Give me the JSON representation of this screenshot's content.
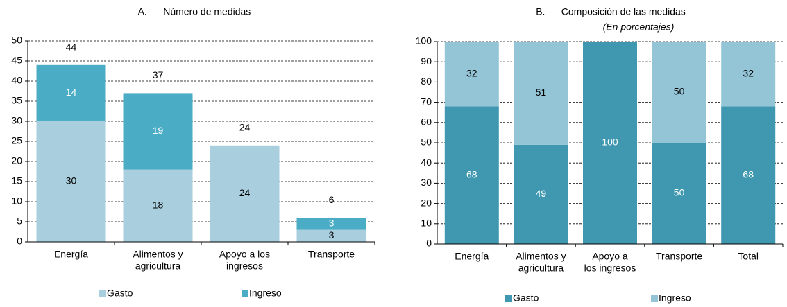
{
  "chart_data": [
    {
      "type": "stacked_bar",
      "title": "A.      Número de medidas",
      "categories": [
        [
          "Energía"
        ],
        [
          "Alimentos y",
          "agricultura"
        ],
        [
          "Apoyo a los",
          "ingresos"
        ],
        [
          "Transporte"
        ]
      ],
      "series": [
        {
          "name": "Gasto",
          "color": "#a9cfdf",
          "label_color": "#000000",
          "values": [
            30,
            18,
            24,
            3
          ]
        },
        {
          "name": "Ingreso",
          "color": "#4bacc6",
          "label_color": "#ffffff",
          "values": [
            14,
            19,
            null,
            3
          ]
        }
      ],
      "totals": [
        44,
        37,
        24,
        6
      ],
      "ylim": [
        0,
        50
      ],
      "yticks": [
        0,
        5,
        10,
        15,
        20,
        25,
        30,
        35,
        40,
        45,
        50
      ],
      "grid": true,
      "legend": "bottom"
    },
    {
      "type": "stacked_bar",
      "title": "B.      Composición de las medidas",
      "subtitle": "(En porcentajes)",
      "categories": [
        [
          "Energía"
        ],
        [
          "Alimentos y",
          "agricultura"
        ],
        [
          "Apoyo a",
          "los ingresos"
        ],
        [
          "Transporte"
        ],
        [
          "Total"
        ]
      ],
      "series": [
        {
          "name": "Gasto",
          "color": "#3f98b0",
          "label_color": "#ffffff",
          "values": [
            68,
            49,
            100,
            50,
            68
          ]
        },
        {
          "name": "Ingreso",
          "color": "#94c5d7",
          "label_color": "#000000",
          "values": [
            32,
            51,
            null,
            50,
            32
          ]
        }
      ],
      "ylim": [
        0,
        100
      ],
      "yticks": [
        0,
        10,
        20,
        30,
        40,
        50,
        60,
        70,
        80,
        90,
        100
      ],
      "grid": true,
      "legend": "bottom"
    }
  ]
}
